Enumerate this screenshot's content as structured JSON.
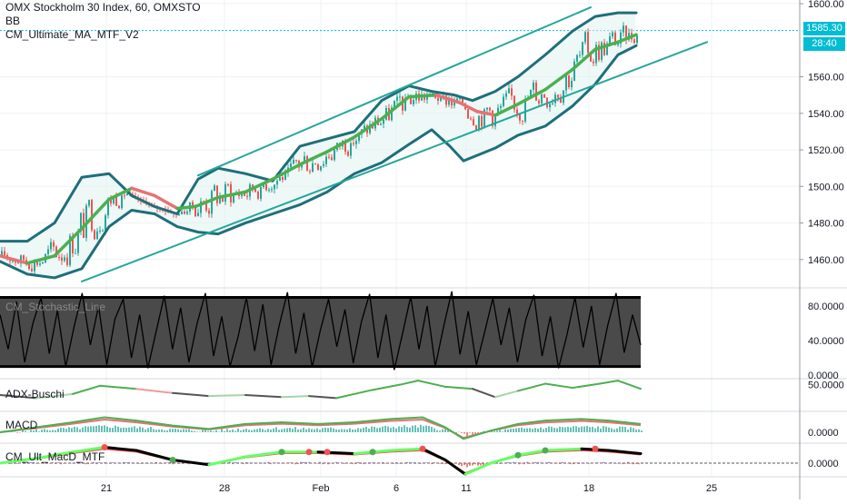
{
  "legend": {
    "title": "OMX Stockholm 30 Index, 60, OMXSTO",
    "indicator_1": "BB",
    "indicator_2": "CM_Ultimate_MA_MTF_V2"
  },
  "price_axis": {
    "current_price": "1585.30",
    "countdown": "28:40"
  },
  "panes": {
    "stoch_label": "CM_Stochastic_Line",
    "adx_label": "ADX-Buschi",
    "macd_label": "MACD",
    "cm_macd_label": "CM_Ult_MacD_MTF"
  },
  "colors": {
    "up_candle": "#26a69a",
    "down_candle": "#ef5350",
    "bollinger": "#1e6f7a",
    "channel": "#26a69a",
    "ma_up": "#4caf50",
    "ma_down": "#e57373",
    "price_tag": "#00bcd4"
  },
  "chart_data": [
    {
      "type": "line",
      "pane": "price",
      "title": "OMX Stockholm 30 Index, 60, OMXSTO",
      "x_ticks": [
        "21",
        "28",
        "Feb",
        "6",
        "11",
        "18",
        "25"
      ],
      "y_ticks": [
        "1460.00",
        "1480.00",
        "1500.00",
        "1520.00",
        "1540.00",
        "1560.00",
        "1585.30",
        "1600.00"
      ],
      "ylim": [
        1445,
        1602
      ],
      "series": [
        {
          "name": "CM_Ultimate_MA_MTF_V2",
          "x": [
            0,
            30,
            60,
            90,
            120,
            145,
            170,
            195,
            215,
            240,
            270,
            300,
            330,
            360,
            390,
            420,
            450,
            480,
            505,
            525,
            545,
            570,
            600,
            630,
            655,
            680,
            700
          ],
          "values": [
            1462,
            1458,
            1462,
            1477,
            1493,
            1499,
            1495,
            1488,
            1489,
            1494,
            1497,
            1504,
            1512,
            1519,
            1527,
            1537,
            1549,
            1550,
            1546,
            1541,
            1539,
            1545,
            1553,
            1564,
            1575,
            1579,
            1583
          ]
        },
        {
          "name": "BB upper",
          "x": [
            0,
            30,
            60,
            90,
            120,
            145,
            170,
            195,
            218,
            240,
            270,
            300,
            330,
            360,
            390,
            420,
            450,
            475,
            500,
            520,
            545,
            570,
            600,
            630,
            655,
            680,
            700
          ],
          "values": [
            1470,
            1470,
            1480,
            1505,
            1507,
            1495,
            1489,
            1485,
            1504,
            1510,
            1507,
            1503,
            1522,
            1526,
            1530,
            1547,
            1555,
            1552,
            1550,
            1547,
            1552,
            1560,
            1572,
            1585,
            1593,
            1595,
            1595
          ]
        },
        {
          "name": "BB lower",
          "x": [
            0,
            30,
            60,
            90,
            120,
            145,
            170,
            195,
            218,
            240,
            270,
            300,
            330,
            360,
            390,
            420,
            450,
            475,
            495,
            510,
            525,
            545,
            570,
            600,
            630,
            655,
            680,
            700
          ],
          "values": [
            1459,
            1452,
            1450,
            1455,
            1478,
            1487,
            1485,
            1478,
            1475,
            1474,
            1480,
            1485,
            1490,
            1497,
            1507,
            1513,
            1523,
            1531,
            1522,
            1514,
            1517,
            1521,
            1528,
            1533,
            1544,
            1556,
            1572,
            1577
          ]
        },
        {
          "name": "Channel upper",
          "x": [
            218,
            650
          ],
          "values": [
            1506,
            1598
          ]
        },
        {
          "name": "Channel lower",
          "x": [
            90,
            778
          ],
          "values": [
            1448,
            1579
          ]
        }
      ]
    },
    {
      "type": "line",
      "pane": "stochastic",
      "y_ticks": [
        "0.0000",
        "40.0000",
        "80.0000"
      ],
      "ylim": [
        0,
        100
      ],
      "bands": [
        10,
        90
      ],
      "values": [
        70,
        30,
        85,
        15,
        60,
        90,
        25,
        75,
        10,
        55,
        95,
        35,
        80,
        12,
        65,
        88,
        20,
        70,
        8,
        50,
        92,
        30,
        78,
        15,
        60,
        95,
        22,
        68,
        10,
        45,
        90,
        28,
        82,
        12,
        58,
        96,
        25,
        72,
        9,
        52,
        88,
        33,
        76,
        14,
        62,
        94,
        20,
        70,
        6,
        48,
        91,
        30,
        80,
        10,
        56,
        97,
        24,
        74,
        12,
        50,
        89,
        35,
        78,
        15,
        64,
        93,
        22,
        68,
        8,
        46,
        90,
        32,
        80,
        12,
        58,
        95,
        26,
        70,
        35
      ]
    },
    {
      "type": "line",
      "pane": "adx",
      "title": "ADX-Buschi",
      "y_ticks": [
        "50.0000"
      ],
      "ylim": [
        0,
        60
      ],
      "x": [
        0,
        40,
        80,
        110,
        150,
        190,
        230,
        270,
        310,
        340,
        370,
        410,
        440,
        460,
        490,
        520,
        545,
        570,
        600,
        630,
        660,
        680,
        705
      ],
      "values": [
        30,
        24,
        32,
        48,
        42,
        34,
        28,
        30,
        26,
        28,
        24,
        40,
        50,
        58,
        46,
        42,
        26,
        38,
        52,
        44,
        52,
        58,
        42
      ]
    },
    {
      "type": "line",
      "pane": "macd",
      "title": "MACD",
      "y_ticks": [
        "0.0000"
      ],
      "ylim": [
        -6,
        12
      ],
      "x": [
        0,
        40,
        80,
        115,
        150,
        190,
        230,
        270,
        310,
        350,
        390,
        430,
        465,
        490,
        510,
        540,
        570,
        600,
        640,
        670,
        705
      ],
      "values": [
        0,
        3,
        6,
        9,
        7,
        4,
        2,
        5,
        6,
        5,
        6,
        8,
        9,
        3,
        -4,
        1,
        5,
        7,
        8,
        7,
        5
      ]
    },
    {
      "type": "line",
      "pane": "cm_macd",
      "title": "CM_Ult_MacD_MTF",
      "y_ticks": [
        "0.0000"
      ],
      "ylim": [
        -8,
        12
      ],
      "x": [
        0,
        40,
        80,
        115,
        150,
        190,
        230,
        270,
        310,
        350,
        390,
        430,
        465,
        490,
        512,
        540,
        570,
        600,
        640,
        670,
        705
      ],
      "values": [
        0,
        3,
        7,
        10,
        8,
        2,
        -1,
        4,
        7,
        7,
        6,
        8,
        9,
        2,
        -7,
        0,
        5,
        8,
        9,
        8,
        6
      ]
    }
  ]
}
